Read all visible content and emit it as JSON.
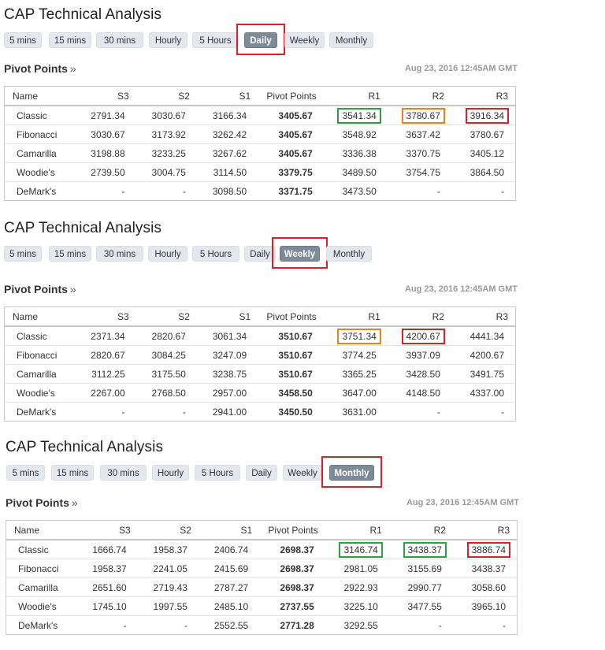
{
  "timeframes": [
    "5 mins",
    "15 mins",
    "30 mins",
    "Hourly",
    "5 Hours",
    "Daily",
    "Weekly",
    "Monthly"
  ],
  "columns": [
    "Name",
    "S3",
    "S2",
    "S1",
    "Pivot Points",
    "R1",
    "R2",
    "R3"
  ],
  "colors": {
    "green": "#2ea043",
    "orange": "#ef7f1a",
    "red": "#d6222a",
    "active_tab": "#7d8a98"
  },
  "panels": [
    {
      "title": "CAP Technical Analysis",
      "active": "Daily",
      "pivot_title": "Pivot Points",
      "timestamp": "Aug 23, 2016 12:45AM GMT",
      "rows": [
        [
          "Classic",
          "2791.34",
          "3030.67",
          "3166.34",
          "3405.67",
          "3541.34",
          "3780.67",
          "3916.34"
        ],
        [
          "Fibonacci",
          "3030.67",
          "3173.92",
          "3262.42",
          "3405.67",
          "3548.92",
          "3637.42",
          "3780.67"
        ],
        [
          "Camarilla",
          "3198.88",
          "3233.25",
          "3267.62",
          "3405.67",
          "3336.38",
          "3370.75",
          "3405.12"
        ],
        [
          "Woodie's",
          "2739.50",
          "3004.75",
          "3114.50",
          "3379.75",
          "3489.50",
          "3754.75",
          "3864.50"
        ],
        [
          "DeMark's",
          "-",
          "-",
          "3098.50",
          "3371.75",
          "3473.50",
          "-",
          "-"
        ]
      ],
      "boxes": {
        "R1": "green",
        "R2": "orange",
        "R3": "red"
      }
    },
    {
      "title": "CAP Technical Analysis",
      "active": "Weekly",
      "pivot_title": "Pivot Points",
      "timestamp": "Aug 23, 2016 12:45AM GMT",
      "rows": [
        [
          "Classic",
          "2371.34",
          "2820.67",
          "3061.34",
          "3510.67",
          "3751.34",
          "4200.67",
          "4441.34"
        ],
        [
          "Fibonacci",
          "2820.67",
          "3084.25",
          "3247.09",
          "3510.67",
          "3774.25",
          "3937.09",
          "4200.67"
        ],
        [
          "Camarilla",
          "3112.25",
          "3175.50",
          "3238.75",
          "3510.67",
          "3365.25",
          "3428.50",
          "3491.75"
        ],
        [
          "Woodie's",
          "2267.00",
          "2768.50",
          "2957.00",
          "3458.50",
          "3647.00",
          "4148.50",
          "4337.00"
        ],
        [
          "DeMark's",
          "-",
          "-",
          "2941.00",
          "3450.50",
          "3631.00",
          "-",
          "-"
        ]
      ],
      "boxes": {
        "R1": "orange",
        "R2": "red"
      }
    },
    {
      "title": "CAP Technical Analysis",
      "active": "Monthly",
      "pivot_title": "Pivot Points",
      "timestamp": "Aug 23, 2016 12:45AM GMT",
      "rows": [
        [
          "Classic",
          "1666.74",
          "1958.37",
          "2406.74",
          "2698.37",
          "3146.74",
          "3438.37",
          "3886.74"
        ],
        [
          "Fibonacci",
          "1958.37",
          "2241.05",
          "2415.69",
          "2698.37",
          "2981.05",
          "3155.69",
          "3438.37"
        ],
        [
          "Camarilla",
          "2651.60",
          "2719.43",
          "2787.27",
          "2698.37",
          "2922.93",
          "2990.77",
          "3058.60"
        ],
        [
          "Woodie's",
          "1745.10",
          "1997.55",
          "2485.10",
          "2737.55",
          "3225.10",
          "3477.55",
          "3965.10"
        ],
        [
          "DeMark's",
          "-",
          "-",
          "2552.55",
          "2771.28",
          "3292.55",
          "-",
          "-"
        ]
      ],
      "boxes": {
        "R1": "green",
        "R2": "green",
        "R3": "red"
      }
    }
  ]
}
